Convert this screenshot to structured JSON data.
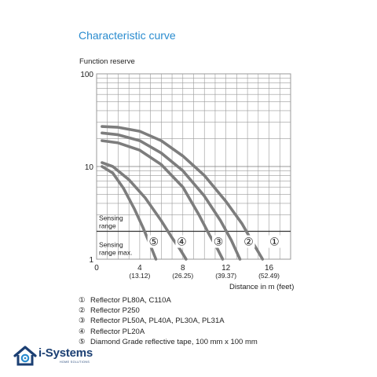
{
  "page": {
    "title": "Characteristic curve",
    "legend": [
      {
        "num": "①",
        "text": "Reflector PL80A, C110A"
      },
      {
        "num": "②",
        "text": "Reflector P250"
      },
      {
        "num": "③",
        "text": "Reflector PL50A, PL40A, PL30A, PL31A"
      },
      {
        "num": "④",
        "text": "Reflector PL20A"
      },
      {
        "num": "⑤",
        "text": "Diamond Grade reflective tape, 100 mm x 100 mm"
      }
    ],
    "logo": {
      "text": "i-Systems",
      "subtext": "HOME SOLUTIONS"
    },
    "colors": {
      "title": "#2a8ccf",
      "curve": "#7d7d7d",
      "grid": "#9a9a9a",
      "logo": "#1b3f73"
    }
  },
  "chart_data": {
    "type": "line",
    "title": "Characteristic curve",
    "ylabel": "Function reserve",
    "xlabel": "Distance in m (feet)",
    "xlim": [
      0,
      18
    ],
    "ylim": [
      1,
      100
    ],
    "y_scale": "log",
    "grid": true,
    "x_ticks": [
      {
        "value": 0,
        "label": "0",
        "sub": ""
      },
      {
        "value": 4,
        "label": "4",
        "sub": "(13.12)"
      },
      {
        "value": 8,
        "label": "8",
        "sub": "(26.25)"
      },
      {
        "value": 12,
        "label": "12",
        "sub": "(39.37)"
      },
      {
        "value": 16,
        "label": "16",
        "sub": "(52.49)"
      }
    ],
    "y_ticks": [
      {
        "value": 1,
        "label": "1"
      },
      {
        "value": 10,
        "label": "10"
      },
      {
        "value": 100,
        "label": "100"
      }
    ],
    "threshold": {
      "y": 2,
      "label_above": [
        "Sensing",
        "range"
      ],
      "label_below": [
        "Sensing",
        "range max."
      ]
    },
    "series": [
      {
        "marker": "①",
        "x": [
          0.5,
          2,
          4,
          6,
          8,
          10,
          12,
          13.5,
          14.5,
          15.4
        ],
        "y": [
          27,
          26.5,
          24,
          19,
          13,
          8,
          4.2,
          2.4,
          1.5,
          1
        ]
      },
      {
        "marker": "②",
        "x": [
          0.5,
          2,
          4,
          6,
          8,
          10,
          11.5,
          12.5,
          13.3
        ],
        "y": [
          23,
          22,
          19,
          14,
          9,
          4.8,
          2.6,
          1.6,
          1
        ]
      },
      {
        "marker": "③",
        "x": [
          0.5,
          2,
          4,
          6,
          8,
          9.5,
          10.5,
          11.2,
          11.7
        ],
        "y": [
          19,
          18,
          15,
          10.5,
          6,
          3,
          1.8,
          1.3,
          1
        ]
      },
      {
        "marker": "④",
        "x": [
          0.5,
          1.5,
          3,
          4.5,
          6,
          7,
          7.7,
          8.3
        ],
        "y": [
          11,
          10,
          7.2,
          4.6,
          2.6,
          1.7,
          1.3,
          1
        ]
      },
      {
        "marker": "⑤",
        "x": [
          0.5,
          1.5,
          2.5,
          3.5,
          4.3,
          5,
          5.5
        ],
        "y": [
          10,
          8.5,
          5.8,
          3.5,
          2.2,
          1.4,
          1
        ]
      }
    ],
    "marker_positions": [
      {
        "marker": "⑤",
        "x": 5.3
      },
      {
        "marker": "④",
        "x": 7.9
      },
      {
        "marker": "③",
        "x": 11.3
      },
      {
        "marker": "②",
        "x": 14.1
      },
      {
        "marker": "①",
        "x": 16.5
      }
    ]
  }
}
